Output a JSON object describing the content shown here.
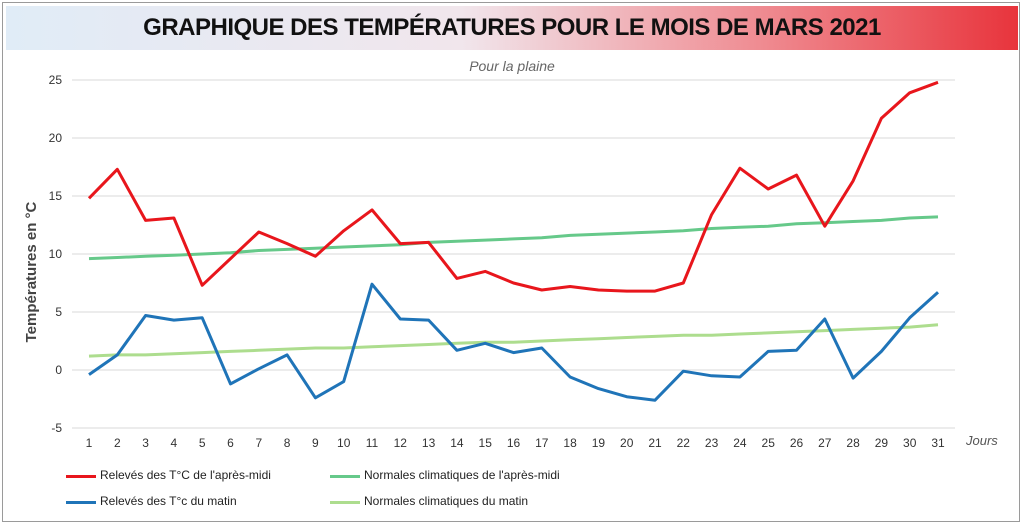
{
  "header": {
    "title": "GRAPHIQUE DES TEMPÉRATURES POUR LE MOIS DE MARS 2021"
  },
  "chart_data": {
    "type": "line",
    "subtitle": "Pour la plaine",
    "xlabel": "Jours",
    "ylabel": "Températures en °C",
    "ylim": [
      -5,
      25
    ],
    "yticks": [
      "-5",
      "0",
      "5",
      "10",
      "15",
      "20",
      "25"
    ],
    "x": [
      "1",
      "2",
      "3",
      "4",
      "5",
      "6",
      "7",
      "8",
      "9",
      "10",
      "11",
      "12",
      "13",
      "14",
      "15",
      "16",
      "17",
      "18",
      "19",
      "20",
      "21",
      "22",
      "23",
      "24",
      "25",
      "26",
      "27",
      "28",
      "29",
      "30",
      "31"
    ],
    "grid": "horizontal",
    "legend_position": "bottom",
    "series": [
      {
        "name": "Relevés des T°C de l'après-midi",
        "color": "#e8161c",
        "values": [
          14.8,
          17.3,
          12.9,
          13.1,
          7.3,
          9.6,
          11.9,
          10.9,
          9.8,
          12.0,
          13.8,
          10.9,
          11.0,
          7.9,
          8.5,
          7.5,
          6.9,
          7.2,
          6.9,
          6.8,
          6.8,
          7.5,
          13.4,
          17.4,
          15.6,
          16.8,
          12.4,
          16.3,
          21.7,
          23.9,
          24.8
        ]
      },
      {
        "name": "Normales climatiques de l'après-midi",
        "color": "#66c98a",
        "values": [
          9.6,
          9.7,
          9.8,
          9.9,
          10.0,
          10.1,
          10.3,
          10.4,
          10.5,
          10.6,
          10.7,
          10.8,
          11.0,
          11.1,
          11.2,
          11.3,
          11.4,
          11.6,
          11.7,
          11.8,
          11.9,
          12.0,
          12.2,
          12.3,
          12.4,
          12.6,
          12.7,
          12.8,
          12.9,
          13.1,
          13.2
        ]
      },
      {
        "name": "Relevés des T°c du matin",
        "color": "#1f74b8",
        "values": [
          -0.4,
          1.3,
          4.7,
          4.3,
          4.5,
          -1.2,
          0.1,
          1.3,
          -2.4,
          -1.0,
          7.4,
          4.4,
          4.3,
          1.7,
          2.3,
          1.5,
          1.9,
          -0.6,
          -1.6,
          -2.3,
          -2.6,
          -0.1,
          -0.5,
          -0.6,
          1.6,
          1.7,
          4.4,
          -0.7,
          1.6,
          4.5,
          6.7
        ]
      },
      {
        "name": "Normales climatiques du matin",
        "color": "#addd8e",
        "values": [
          1.2,
          1.3,
          1.3,
          1.4,
          1.5,
          1.6,
          1.7,
          1.8,
          1.9,
          1.9,
          2.0,
          2.1,
          2.2,
          2.3,
          2.4,
          2.4,
          2.5,
          2.6,
          2.7,
          2.8,
          2.9,
          3.0,
          3.0,
          3.1,
          3.2,
          3.3,
          3.4,
          3.5,
          3.6,
          3.7,
          3.9
        ]
      }
    ]
  }
}
